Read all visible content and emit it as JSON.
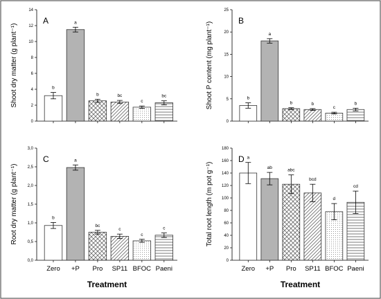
{
  "colors": {
    "frame": "#5a5a5a",
    "bar_stroke": "#333333",
    "plusP_fill": "#b3b3b3",
    "pattern_stroke": "#6a6a6a"
  },
  "treatments": [
    "Zero",
    "+P",
    "Pro",
    "SP11",
    "BFOC",
    "Paeni"
  ],
  "bar_styles": [
    "white",
    "grey",
    "crosshatch",
    "diagonal",
    "dotted",
    "horizontal"
  ],
  "chart_data": [
    {
      "panel": "A",
      "type": "bar",
      "categories": [
        "Zero",
        "+P",
        "Pro",
        "SP11",
        "BFOC",
        "Paeni"
      ],
      "values": [
        3.2,
        11.5,
        2.55,
        2.4,
        1.75,
        2.3
      ],
      "errors": [
        0.4,
        0.3,
        0.2,
        0.2,
        0.15,
        0.25
      ],
      "letters": [
        "b",
        "a",
        "b",
        "bc",
        "c",
        "bc"
      ],
      "ylabel": "Shoot dry matter (g plant⁻¹)",
      "xlabel": "",
      "ylim": [
        0,
        14
      ],
      "ticks": [
        0,
        2,
        4,
        6,
        8,
        10,
        12,
        14
      ],
      "tick_labels": [
        "0",
        "2",
        "4",
        "6",
        "8",
        "10",
        "12",
        "14"
      ]
    },
    {
      "panel": "B",
      "type": "bar",
      "categories": [
        "Zero",
        "+P",
        "Pro",
        "SP11",
        "BFOC",
        "Paeni"
      ],
      "values": [
        3.5,
        18.0,
        2.8,
        2.6,
        1.8,
        2.6
      ],
      "errors": [
        0.6,
        0.5,
        0.2,
        0.2,
        0.2,
        0.3
      ],
      "letters": [
        "b",
        "a",
        "b",
        "b",
        "c",
        "b"
      ],
      "ylabel": "Shoot P content (mg plant⁻¹)",
      "xlabel": "",
      "ylim": [
        0,
        25
      ],
      "ticks": [
        0,
        5,
        10,
        15,
        20,
        25
      ],
      "tick_labels": [
        "0",
        "5",
        "10",
        "15",
        "20",
        "25"
      ]
    },
    {
      "panel": "C",
      "type": "bar",
      "categories": [
        "Zero",
        "+P",
        "Pro",
        "SP11",
        "BFOC",
        "Paeni"
      ],
      "values": [
        0.93,
        2.48,
        0.75,
        0.64,
        0.52,
        0.67
      ],
      "errors": [
        0.08,
        0.07,
        0.05,
        0.06,
        0.04,
        0.06
      ],
      "letters": [
        "b",
        "a",
        "bc",
        "c",
        "c",
        "c"
      ],
      "ylabel": "Root dry matter (g plant⁻¹)",
      "xlabel": "Treatment",
      "ylim": [
        0,
        3.0
      ],
      "ticks": [
        0,
        0.5,
        1.0,
        1.5,
        2.0,
        2.5,
        3.0
      ],
      "tick_labels": [
        "0,0",
        "0,5",
        "1,0",
        "1,5",
        "2,0",
        "2,5",
        "3,0"
      ]
    },
    {
      "panel": "D",
      "type": "bar",
      "categories": [
        "Zero",
        "+P",
        "Pro",
        "SP11",
        "BFOC",
        "Paeni"
      ],
      "values": [
        140,
        131,
        122,
        108,
        78,
        93
      ],
      "errors": [
        17,
        10,
        15,
        14,
        13,
        18
      ],
      "letters": [
        "a",
        "ab",
        "abc",
        "bcd",
        "d",
        "cd"
      ],
      "ylabel": "Total root length (m pot g⁻¹)",
      "xlabel": "Treatment",
      "ylim": [
        0,
        180
      ],
      "ticks": [
        0,
        20,
        40,
        60,
        80,
        100,
        120,
        140,
        160,
        180
      ],
      "tick_labels": [
        "0",
        "20",
        "40",
        "60",
        "80",
        "100",
        "120",
        "140",
        "160",
        "180"
      ]
    }
  ]
}
